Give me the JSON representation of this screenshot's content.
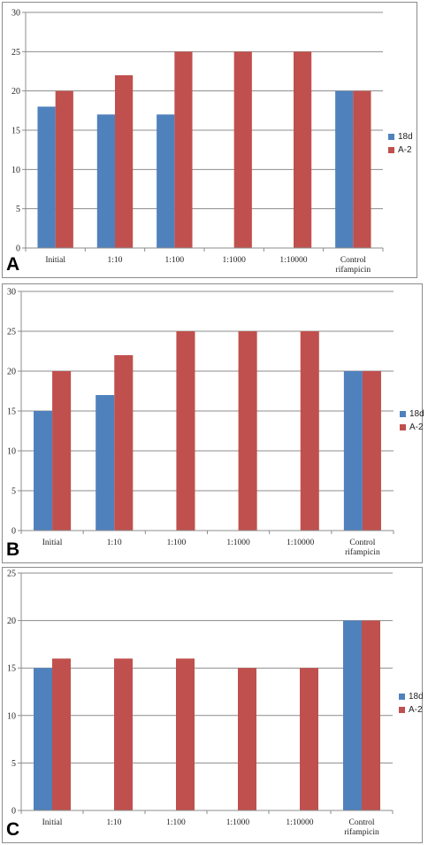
{
  "colors": {
    "series_18d": "#4f81bd",
    "series_A2": "#c0504d",
    "grid": "#8c8c8c"
  },
  "chart_data": [
    {
      "panel_label": "A",
      "type": "bar",
      "categories": [
        "Initial",
        "1:10",
        "1:100",
        "1:1000",
        "1:10000",
        "Control rifampicin"
      ],
      "category_labels": [
        [
          "Initial"
        ],
        [
          "1:10"
        ],
        [
          "1:100"
        ],
        [
          "1:1000"
        ],
        [
          "1:10000"
        ],
        [
          "Control",
          "rifampicin"
        ]
      ],
      "series": [
        {
          "name": "18d",
          "values": [
            18,
            17,
            17,
            null,
            null,
            20
          ]
        },
        {
          "name": "A-2",
          "values": [
            20,
            22,
            25,
            25,
            25,
            20
          ]
        }
      ],
      "yticks": [
        "0",
        "5",
        "10",
        "15",
        "20",
        "25",
        "30"
      ],
      "ylim": [
        0,
        30
      ],
      "grid": true,
      "legend_position": "right"
    },
    {
      "panel_label": "B",
      "type": "bar",
      "categories": [
        "Initial",
        "1:10",
        "1:100",
        "1:1000",
        "1:10000",
        "Control rifampicin"
      ],
      "category_labels": [
        [
          "Initial"
        ],
        [
          "1:10"
        ],
        [
          "1:100"
        ],
        [
          "1:1000"
        ],
        [
          "1:10000"
        ],
        [
          "Control",
          "rifampicin"
        ]
      ],
      "series": [
        {
          "name": "18d",
          "values": [
            15,
            17,
            null,
            null,
            null,
            20
          ]
        },
        {
          "name": "A-2",
          "values": [
            20,
            22,
            25,
            25,
            25,
            20
          ]
        }
      ],
      "yticks": [
        "0",
        "5",
        "10",
        "15",
        "20",
        "25",
        "30"
      ],
      "ylim": [
        0,
        30
      ],
      "grid": true,
      "legend_position": "right"
    },
    {
      "panel_label": "C",
      "type": "bar",
      "categories": [
        "Initial",
        "1:10",
        "1:100",
        "1:1000",
        "1:10000",
        "Control rifampicin"
      ],
      "category_labels": [
        [
          "Initial"
        ],
        [
          "1:10"
        ],
        [
          "1:100"
        ],
        [
          "1:1000"
        ],
        [
          "1:10000"
        ],
        [
          "Control",
          "rifampicin"
        ]
      ],
      "series": [
        {
          "name": "18d",
          "values": [
            15,
            null,
            null,
            null,
            null,
            20
          ]
        },
        {
          "name": "A-2",
          "values": [
            16,
            16,
            16,
            15,
            15,
            20
          ]
        }
      ],
      "yticks": [
        "0",
        "5",
        "10",
        "15",
        "20",
        "25"
      ],
      "ylim": [
        0,
        25
      ],
      "grid": true,
      "legend_position": "right"
    }
  ]
}
